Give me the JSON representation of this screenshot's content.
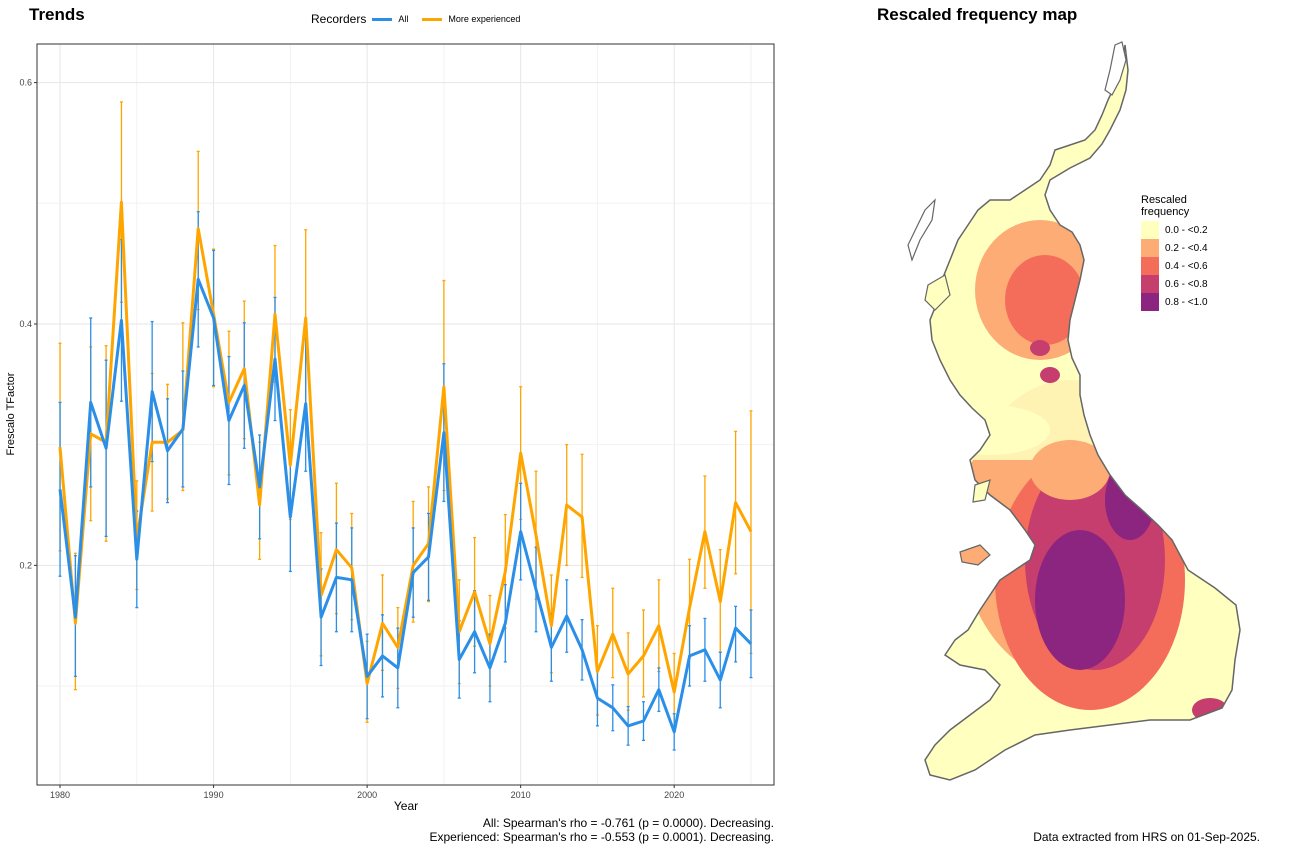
{
  "left_title": "Trends",
  "right_title": "Rescaled frequency map",
  "legend": {
    "title": "Recorders",
    "items": [
      {
        "label": "All",
        "color": "#2b8fe8"
      },
      {
        "label": "More experienced",
        "color": "#ffa500"
      }
    ]
  },
  "chart_data": {
    "type": "line",
    "xlabel": "Year",
    "ylabel": "Frescalo TFactor",
    "xlim": [
      1978.5,
      2026.5
    ],
    "ylim": [
      0.018,
      0.632
    ],
    "x_ticks": [
      1980,
      1990,
      2000,
      2010,
      2020
    ],
    "y_ticks": [
      0.2,
      0.4,
      0.6
    ],
    "grid": true,
    "legend_position": "top",
    "x": [
      1980,
      1981,
      1982,
      1983,
      1984,
      1985,
      1986,
      1987,
      1988,
      1989,
      1990,
      1991,
      1992,
      1993,
      1994,
      1995,
      1996,
      1997,
      1998,
      1999,
      2000,
      2001,
      2002,
      2003,
      2004,
      2005,
      2006,
      2007,
      2008,
      2009,
      2010,
      2011,
      2012,
      2013,
      2014,
      2015,
      2016,
      2017,
      2018,
      2019,
      2020,
      2021,
      2022,
      2023,
      2024,
      2025
    ],
    "series": [
      {
        "name": "All",
        "color": "#2b8fe8",
        "values": [
          0.263,
          0.157,
          0.335,
          0.297,
          0.403,
          0.205,
          0.344,
          0.295,
          0.313,
          0.437,
          0.405,
          0.32,
          0.349,
          0.265,
          0.371,
          0.24,
          0.334,
          0.157,
          0.19,
          0.188,
          0.108,
          0.125,
          0.115,
          0.194,
          0.207,
          0.31,
          0.122,
          0.145,
          0.115,
          0.152,
          0.228,
          0.18,
          0.132,
          0.158,
          0.13,
          0.09,
          0.082,
          0.067,
          0.071,
          0.097,
          0.062,
          0.125,
          0.13,
          0.105,
          0.148,
          0.135
        ],
        "lower": [
          0.191,
          0.108,
          0.265,
          0.224,
          0.336,
          0.165,
          0.286,
          0.252,
          0.265,
          0.381,
          0.349,
          0.267,
          0.297,
          0.222,
          0.32,
          0.195,
          0.278,
          0.117,
          0.145,
          0.145,
          0.073,
          0.091,
          0.082,
          0.157,
          0.171,
          0.253,
          0.09,
          0.111,
          0.087,
          0.12,
          0.188,
          0.145,
          0.104,
          0.128,
          0.105,
          0.067,
          0.063,
          0.051,
          0.055,
          0.079,
          0.047,
          0.1,
          0.104,
          0.082,
          0.12,
          0.107
        ],
        "upper": [
          0.335,
          0.208,
          0.405,
          0.37,
          0.47,
          0.245,
          0.402,
          0.338,
          0.361,
          0.493,
          0.461,
          0.373,
          0.401,
          0.308,
          0.422,
          0.285,
          0.39,
          0.197,
          0.235,
          0.231,
          0.143,
          0.159,
          0.148,
          0.231,
          0.243,
          0.367,
          0.154,
          0.179,
          0.143,
          0.184,
          0.268,
          0.215,
          0.16,
          0.188,
          0.155,
          0.113,
          0.101,
          0.083,
          0.087,
          0.115,
          0.077,
          0.15,
          0.156,
          0.128,
          0.166,
          0.163
        ]
      },
      {
        "name": "More experienced",
        "color": "#ffa500",
        "values": [
          0.298,
          0.152,
          0.309,
          0.302,
          0.501,
          0.222,
          0.302,
          0.302,
          0.312,
          0.479,
          0.408,
          0.335,
          0.363,
          0.25,
          0.408,
          0.283,
          0.405,
          0.175,
          0.213,
          0.198,
          0.102,
          0.152,
          0.132,
          0.2,
          0.218,
          0.348,
          0.145,
          0.178,
          0.135,
          0.195,
          0.293,
          0.225,
          0.15,
          0.25,
          0.24,
          0.112,
          0.143,
          0.11,
          0.125,
          0.15,
          0.095,
          0.165,
          0.228,
          0.17,
          0.252,
          0.228
        ],
        "lower": [
          0.212,
          0.097,
          0.237,
          0.22,
          0.418,
          0.18,
          0.245,
          0.255,
          0.262,
          0.412,
          0.348,
          0.275,
          0.305,
          0.205,
          0.352,
          0.238,
          0.333,
          0.125,
          0.16,
          0.155,
          0.07,
          0.113,
          0.098,
          0.153,
          0.17,
          0.262,
          0.102,
          0.133,
          0.1,
          0.148,
          0.238,
          0.172,
          0.111,
          0.2,
          0.19,
          0.076,
          0.107,
          0.08,
          0.091,
          0.112,
          0.065,
          0.125,
          0.181,
          0.128,
          0.193,
          0.127
        ],
        "upper": [
          0.384,
          0.21,
          0.381,
          0.382,
          0.584,
          0.27,
          0.359,
          0.35,
          0.401,
          0.543,
          0.462,
          0.394,
          0.419,
          0.302,
          0.465,
          0.329,
          0.478,
          0.227,
          0.268,
          0.243,
          0.137,
          0.192,
          0.165,
          0.253,
          0.265,
          0.436,
          0.188,
          0.223,
          0.175,
          0.242,
          0.348,
          0.278,
          0.192,
          0.3,
          0.292,
          0.15,
          0.181,
          0.144,
          0.163,
          0.188,
          0.127,
          0.205,
          0.274,
          0.213,
          0.311,
          0.328
        ]
      }
    ]
  },
  "footer": {
    "line1": "All: Spearman's rho = -0.761 (p = 0.0000). Decreasing.",
    "line2": "Experienced: Spearman's rho = -0.553 (p = 0.0001). Decreasing.",
    "source": "Data extracted from HRS on 01-Sep-2025."
  },
  "map_legend": {
    "title_line1": "Rescaled",
    "title_line2": "frequency",
    "items": [
      {
        "label": "0.0 - <0.2",
        "color": "#ffffc0"
      },
      {
        "label": "0.2 - <0.4",
        "color": "#fcac74"
      },
      {
        "label": "0.4 - <0.6",
        "color": "#f46d5a"
      },
      {
        "label": "0.6 - <0.8",
        "color": "#c53e6e"
      },
      {
        "label": "0.8 - <1.0",
        "color": "#8b2580"
      }
    ]
  }
}
